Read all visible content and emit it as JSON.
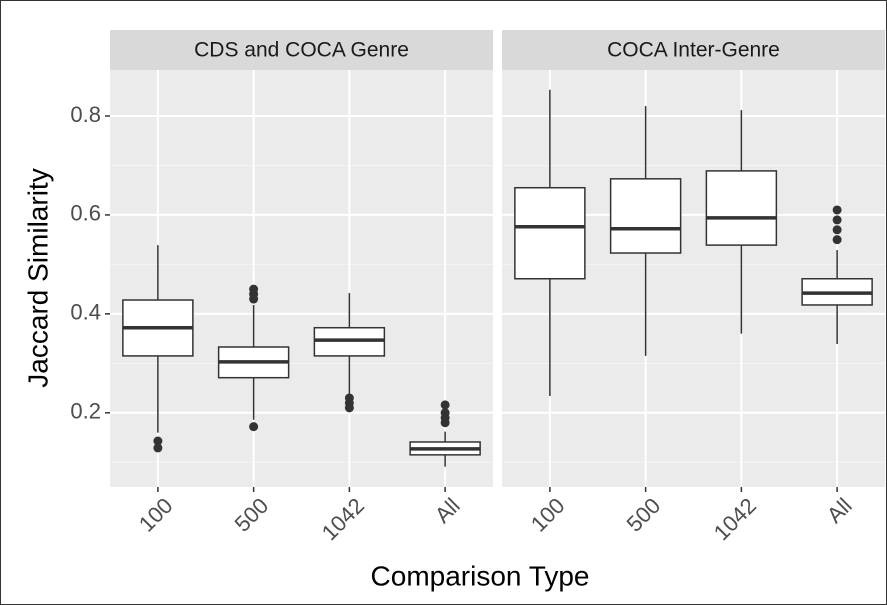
{
  "chart_data": {
    "type": "box",
    "xlabel": "Comparison Type",
    "ylabel": "Jaccard Similarity",
    "ylim": [
      0.05,
      0.893
    ],
    "yticks": [
      0.2,
      0.4,
      0.6,
      0.8
    ],
    "minor_grid": [
      0.1,
      0.3,
      0.5,
      0.7
    ],
    "facets": [
      {
        "title": "CDS and COCA Genre",
        "categories": [
          "100",
          "500",
          "1042",
          "All"
        ],
        "boxes": [
          {
            "min": 0.16,
            "q1": 0.315,
            "median": 0.372,
            "q3": 0.428,
            "max": 0.539,
            "outliers": [
              0.143,
              0.129
            ]
          },
          {
            "min": 0.186,
            "q1": 0.271,
            "median": 0.303,
            "q3": 0.333,
            "max": 0.418,
            "outliers": [
              0.45,
              0.44,
              0.43,
              0.172
            ]
          },
          {
            "min": 0.236,
            "q1": 0.315,
            "median": 0.347,
            "q3": 0.372,
            "max": 0.442,
            "outliers": [
              0.23,
              0.22,
              0.21
            ]
          },
          {
            "min": 0.091,
            "q1": 0.115,
            "median": 0.127,
            "q3": 0.141,
            "max": 0.162,
            "outliers": [
              0.216,
              0.2,
              0.19,
              0.18
            ]
          }
        ]
      },
      {
        "title": "COCA Inter-Genre",
        "categories": [
          "100",
          "500",
          "1042",
          "All"
        ],
        "boxes": [
          {
            "min": 0.234,
            "q1": 0.471,
            "median": 0.576,
            "q3": 0.655,
            "max": 0.853,
            "outliers": []
          },
          {
            "min": 0.315,
            "q1": 0.523,
            "median": 0.572,
            "q3": 0.673,
            "max": 0.82,
            "outliers": []
          },
          {
            "min": 0.36,
            "q1": 0.539,
            "median": 0.594,
            "q3": 0.689,
            "max": 0.812,
            "outliers": []
          },
          {
            "min": 0.339,
            "q1": 0.418,
            "median": 0.442,
            "q3": 0.471,
            "max": 0.529,
            "outliers": [
              0.61,
              0.59,
              0.57,
              0.55
            ]
          }
        ]
      }
    ]
  }
}
